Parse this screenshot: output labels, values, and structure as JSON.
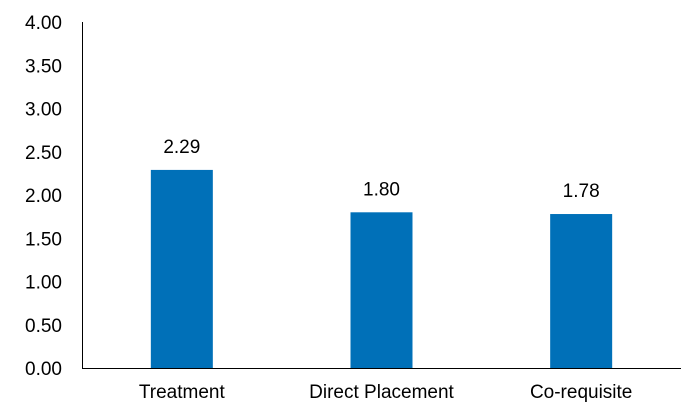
{
  "chart_data": {
    "type": "bar",
    "categories": [
      "Treatment",
      "Direct Placement",
      "Co-requisite"
    ],
    "values": [
      2.29,
      1.8,
      1.78
    ],
    "data_labels": [
      "2.29",
      "1.80",
      "1.78"
    ],
    "y_ticks": [
      "0.00",
      "0.50",
      "1.00",
      "1.50",
      "2.00",
      "2.50",
      "3.00",
      "3.50",
      "4.00"
    ],
    "ylim": [
      0,
      4
    ],
    "title": "",
    "xlabel": "",
    "ylabel": "",
    "grid": false,
    "legend": "none",
    "bar_color": "#0070B8"
  }
}
